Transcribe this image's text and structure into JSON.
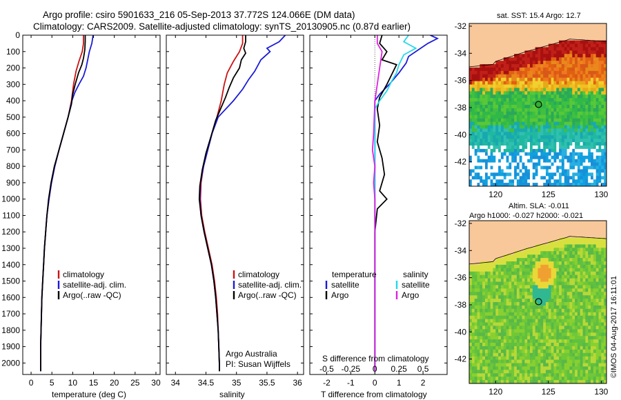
{
  "title": {
    "line1": "Argo profile: csiro 5901633_216 05-Sep-2013 37.772S 124.066E (DM data)",
    "line2": "Climatology: CARS2009. Satellite-adjusted climatology: synTS_20130905.nc (0.87d earlier)"
  },
  "colors": {
    "climatology": "#cc1111",
    "satellite": "#1a1ad8",
    "argo": "#000000",
    "salinity_satellite": "#22d8e8",
    "salinity_argo": "#e020e0",
    "land": "#f8c89a"
  },
  "chart_data": [
    {
      "type": "line",
      "name": "temperature-profile",
      "xlabel": "temperature (deg C)",
      "ylabel": "",
      "xlim": [
        -2,
        31
      ],
      "ylim": [
        2070,
        0
      ],
      "xticks": [
        0,
        5,
        10,
        15,
        20,
        25,
        30
      ],
      "yticks": [
        0,
        100,
        200,
        300,
        400,
        500,
        600,
        700,
        800,
        900,
        1000,
        1100,
        1200,
        1300,
        1400,
        1500,
        1600,
        1700,
        1800,
        1900,
        2000
      ],
      "legend": [
        "climatology",
        "satellite-adj. clim.",
        "Argo(..raw -QC)"
      ],
      "legend_placement": "bottom-center",
      "series": [
        {
          "name": "climatology",
          "color_key": "climatology",
          "points": [
            [
              12.6,
              0
            ],
            [
              12.6,
              50
            ],
            [
              12.3,
              100
            ],
            [
              11.5,
              160
            ],
            [
              10.8,
              220
            ],
            [
              10.2,
              300
            ],
            [
              9.7,
              400
            ],
            [
              8.9,
              500
            ],
            [
              7.8,
              600
            ],
            [
              6.7,
              700
            ],
            [
              5.7,
              800
            ],
            [
              4.9,
              900
            ],
            [
              4.3,
              1000
            ],
            [
              3.8,
              1100
            ],
            [
              3.5,
              1200
            ],
            [
              3.2,
              1300
            ],
            [
              3.0,
              1400
            ],
            [
              2.8,
              1500
            ],
            [
              2.6,
              1600
            ],
            [
              2.5,
              1700
            ],
            [
              2.4,
              1800
            ],
            [
              2.3,
              1900
            ],
            [
              2.3,
              2000
            ],
            [
              2.3,
              2050
            ]
          ]
        },
        {
          "name": "satellite-adj. clim.",
          "color_key": "satellite",
          "points": [
            [
              14.9,
              0
            ],
            [
              14.6,
              50
            ],
            [
              14.0,
              100
            ],
            [
              13.6,
              150
            ],
            [
              13.2,
              200
            ],
            [
              12.6,
              250
            ],
            [
              11.5,
              300
            ],
            [
              10.5,
              350
            ],
            [
              9.8,
              400
            ],
            [
              8.9,
              500
            ],
            [
              7.8,
              600
            ],
            [
              6.7,
              700
            ],
            [
              5.7,
              800
            ],
            [
              4.9,
              900
            ],
            [
              4.3,
              1000
            ],
            [
              3.8,
              1100
            ],
            [
              3.5,
              1200
            ],
            [
              3.2,
              1300
            ],
            [
              3.0,
              1400
            ],
            [
              2.8,
              1500
            ],
            [
              2.6,
              1600
            ],
            [
              2.5,
              1700
            ],
            [
              2.4,
              1800
            ],
            [
              2.3,
              1900
            ],
            [
              2.3,
              2000
            ],
            [
              2.3,
              2050
            ]
          ]
        },
        {
          "name": "Argo(..raw -QC)",
          "color_key": "argo",
          "points": [
            [
              13.0,
              0
            ],
            [
              13.0,
              40
            ],
            [
              12.9,
              90
            ],
            [
              12.6,
              140
            ],
            [
              12.2,
              180
            ],
            [
              11.4,
              230
            ],
            [
              10.6,
              300
            ],
            [
              10.0,
              360
            ],
            [
              9.7,
              420
            ],
            [
              8.9,
              500
            ],
            [
              7.8,
              600
            ],
            [
              6.7,
              700
            ],
            [
              5.6,
              800
            ],
            [
              4.8,
              900
            ],
            [
              4.2,
              1000
            ],
            [
              3.8,
              1100
            ],
            [
              3.5,
              1200
            ],
            [
              3.2,
              1300
            ],
            [
              3.0,
              1400
            ],
            [
              2.8,
              1500
            ],
            [
              2.6,
              1600
            ],
            [
              2.5,
              1700
            ],
            [
              2.4,
              1800
            ],
            [
              2.3,
              1900
            ],
            [
              2.3,
              2000
            ],
            [
              2.3,
              2050
            ]
          ]
        }
      ]
    },
    {
      "type": "line",
      "name": "salinity-profile",
      "xlabel": "salinity",
      "ylabel": "",
      "xlim": [
        33.85,
        36.1
      ],
      "ylim": [
        2070,
        0
      ],
      "xticks": [
        34,
        34.5,
        35,
        35.5,
        36
      ],
      "xtick_labels": [
        "34",
        "34.5",
        "35",
        "35.5",
        "36"
      ],
      "legend": [
        "climatology",
        "satellite-adj. clim.",
        "Argo(..raw -QC)"
      ],
      "legend_placement": "bottom-right",
      "annotation": [
        "Argo Australia",
        "PI: Susan Wijffels"
      ],
      "series": [
        {
          "name": "climatology",
          "color_key": "climatology",
          "points": [
            [
              35.1,
              0
            ],
            [
              35.1,
              50
            ],
            [
              35.05,
              100
            ],
            [
              34.95,
              160
            ],
            [
              34.85,
              230
            ],
            [
              34.8,
              300
            ],
            [
              34.75,
              400
            ],
            [
              34.68,
              500
            ],
            [
              34.6,
              600
            ],
            [
              34.53,
              700
            ],
            [
              34.46,
              800
            ],
            [
              34.42,
              900
            ],
            [
              34.41,
              1000
            ],
            [
              34.43,
              1100
            ],
            [
              34.48,
              1200
            ],
            [
              34.54,
              1300
            ],
            [
              34.6,
              1400
            ],
            [
              34.64,
              1500
            ],
            [
              34.67,
              1600
            ],
            [
              34.69,
              1700
            ],
            [
              34.7,
              1800
            ],
            [
              34.71,
              1900
            ],
            [
              34.72,
              2000
            ],
            [
              34.72,
              2050
            ]
          ]
        },
        {
          "name": "satellite-adj. clim.",
          "color_key": "satellite",
          "points": [
            [
              35.8,
              0
            ],
            [
              35.7,
              40
            ],
            [
              35.5,
              80
            ],
            [
              35.55,
              100
            ],
            [
              35.4,
              150
            ],
            [
              35.3,
              220
            ],
            [
              35.2,
              270
            ],
            [
              35.1,
              330
            ],
            [
              34.95,
              400
            ],
            [
              34.7,
              500
            ],
            [
              34.6,
              600
            ],
            [
              34.53,
              700
            ],
            [
              34.46,
              800
            ],
            [
              34.41,
              900
            ],
            [
              34.4,
              1000
            ],
            [
              34.42,
              1100
            ],
            [
              34.47,
              1200
            ],
            [
              34.53,
              1300
            ],
            [
              34.59,
              1400
            ],
            [
              34.63,
              1500
            ],
            [
              34.66,
              1600
            ],
            [
              34.68,
              1700
            ],
            [
              34.7,
              1800
            ],
            [
              34.71,
              1900
            ],
            [
              34.72,
              2000
            ],
            [
              34.72,
              2050
            ]
          ]
        },
        {
          "name": "Argo(..raw -QC)",
          "color_key": "argo",
          "points": [
            [
              35.15,
              0
            ],
            [
              35.15,
              40
            ],
            [
              35.12,
              80
            ],
            [
              35.15,
              110
            ],
            [
              35.08,
              150
            ],
            [
              35.05,
              200
            ],
            [
              34.95,
              260
            ],
            [
              34.88,
              320
            ],
            [
              34.82,
              380
            ],
            [
              34.75,
              440
            ],
            [
              34.66,
              520
            ],
            [
              34.58,
              620
            ],
            [
              34.5,
              720
            ],
            [
              34.44,
              820
            ],
            [
              34.4,
              920
            ],
            [
              34.39,
              1000
            ],
            [
              34.42,
              1100
            ],
            [
              34.47,
              1200
            ],
            [
              34.53,
              1300
            ],
            [
              34.59,
              1400
            ],
            [
              34.63,
              1500
            ],
            [
              34.66,
              1600
            ],
            [
              34.68,
              1700
            ],
            [
              34.7,
              1800
            ],
            [
              34.71,
              1900
            ],
            [
              34.72,
              2000
            ],
            [
              34.72,
              2050
            ]
          ]
        }
      ]
    },
    {
      "type": "line",
      "name": "difference-profile",
      "xlabel": "T difference from climatology",
      "xlabel_top": "S difference from climatology",
      "xlim_T": [
        -2.7,
        3.0
      ],
      "xticks_T": [
        -2,
        -1,
        0,
        1,
        2
      ],
      "xticks_S": [
        -0.5,
        -0.25,
        0,
        0.25,
        0.5
      ],
      "xtick_labels_S": [
        "-0.5",
        "-0.25",
        "0",
        "0.25",
        "0.5"
      ],
      "ylim": [
        2070,
        0
      ],
      "legend_temperature": {
        "heading": "temperature",
        "items": [
          "satellite",
          "Argo"
        ]
      },
      "legend_salinity": {
        "heading": "salinity",
        "items": [
          "satellite",
          "Argo"
        ]
      },
      "series": [
        {
          "name": "satellite",
          "group": "temperature",
          "color_key": "satellite",
          "points": [
            [
              2.3,
              0
            ],
            [
              2.6,
              20
            ],
            [
              2.2,
              50
            ],
            [
              1.8,
              90
            ],
            [
              1.4,
              130
            ],
            [
              1.3,
              170
            ],
            [
              1.0,
              230
            ],
            [
              0.6,
              300
            ],
            [
              0.2,
              360
            ],
            [
              0.0,
              400
            ],
            [
              0.0,
              500
            ],
            [
              0.0,
              700
            ],
            [
              0.0,
              1000
            ],
            [
              0.0,
              1500
            ],
            [
              0.0,
              2050
            ]
          ]
        },
        {
          "name": "Argo",
          "group": "temperature",
          "color_key": "argo",
          "points": [
            [
              0.3,
              0
            ],
            [
              0.2,
              50
            ],
            [
              0.5,
              100
            ],
            [
              0.3,
              150
            ],
            [
              0.9,
              180
            ],
            [
              0.7,
              240
            ],
            [
              0.5,
              300
            ],
            [
              0.2,
              380
            ],
            [
              0.1,
              450
            ],
            [
              0.2,
              550
            ],
            [
              0.1,
              650
            ],
            [
              0.3,
              750
            ],
            [
              0.4,
              850
            ],
            [
              0.2,
              950
            ],
            [
              0.5,
              1000
            ],
            [
              0.1,
              1060
            ],
            [
              0.0,
              1200
            ],
            [
              0.0,
              1500
            ],
            [
              0.0,
              2050
            ]
          ]
        },
        {
          "name": "satellite",
          "group": "salinity",
          "color_key": "salinity_satellite",
          "points": [
            [
              1.4,
              0
            ],
            [
              1.2,
              40
            ],
            [
              1.7,
              80
            ],
            [
              1.2,
              120
            ],
            [
              1.0,
              180
            ],
            [
              0.9,
              230
            ],
            [
              0.7,
              280
            ],
            [
              0.5,
              340
            ],
            [
              0.2,
              400
            ],
            [
              0.0,
              450
            ],
            [
              0.0,
              500
            ],
            [
              0.0,
              1000
            ],
            [
              0.0,
              1500
            ],
            [
              0.0,
              2050
            ]
          ]
        },
        {
          "name": "Argo",
          "group": "salinity",
          "color_key": "salinity_argo",
          "points": [
            [
              0.1,
              0
            ],
            [
              0.1,
              50
            ],
            [
              0.3,
              100
            ],
            [
              0.2,
              200
            ],
            [
              0.1,
              300
            ],
            [
              0.0,
              400
            ],
            [
              -0.05,
              600
            ],
            [
              -0.1,
              700
            ],
            [
              0.0,
              800
            ],
            [
              -0.05,
              900
            ],
            [
              0.0,
              1000
            ],
            [
              0.0,
              1300
            ],
            [
              0.0,
              1500
            ],
            [
              0.0,
              2050
            ]
          ]
        }
      ]
    },
    {
      "type": "heatmap",
      "name": "sst-map",
      "title": "sat. SST: 15.4  Argo: 12.7",
      "xlim": [
        117.5,
        130.5
      ],
      "ylim": [
        -43.8,
        -31.8
      ],
      "xticks": [
        120,
        125,
        130
      ],
      "yticks": [
        -32,
        -34,
        -36,
        -38,
        -40,
        -42
      ],
      "float_position": [
        124.066,
        -37.772
      ]
    },
    {
      "type": "heatmap",
      "name": "sla-map",
      "title": [
        "Altim. SLA: -0.011",
        "Argo h1000: -0.027  h2000: -0.021"
      ],
      "xlim": [
        117.5,
        130.5
      ],
      "ylim": [
        -43.8,
        -31.8
      ],
      "xticks": [
        120,
        125,
        130
      ],
      "yticks": [
        -32,
        -34,
        -36,
        -38,
        -40,
        -42
      ],
      "float_position": [
        124.066,
        -37.772
      ]
    }
  ],
  "credit": "©IMOS 04-Aug-2017 16:11:01"
}
